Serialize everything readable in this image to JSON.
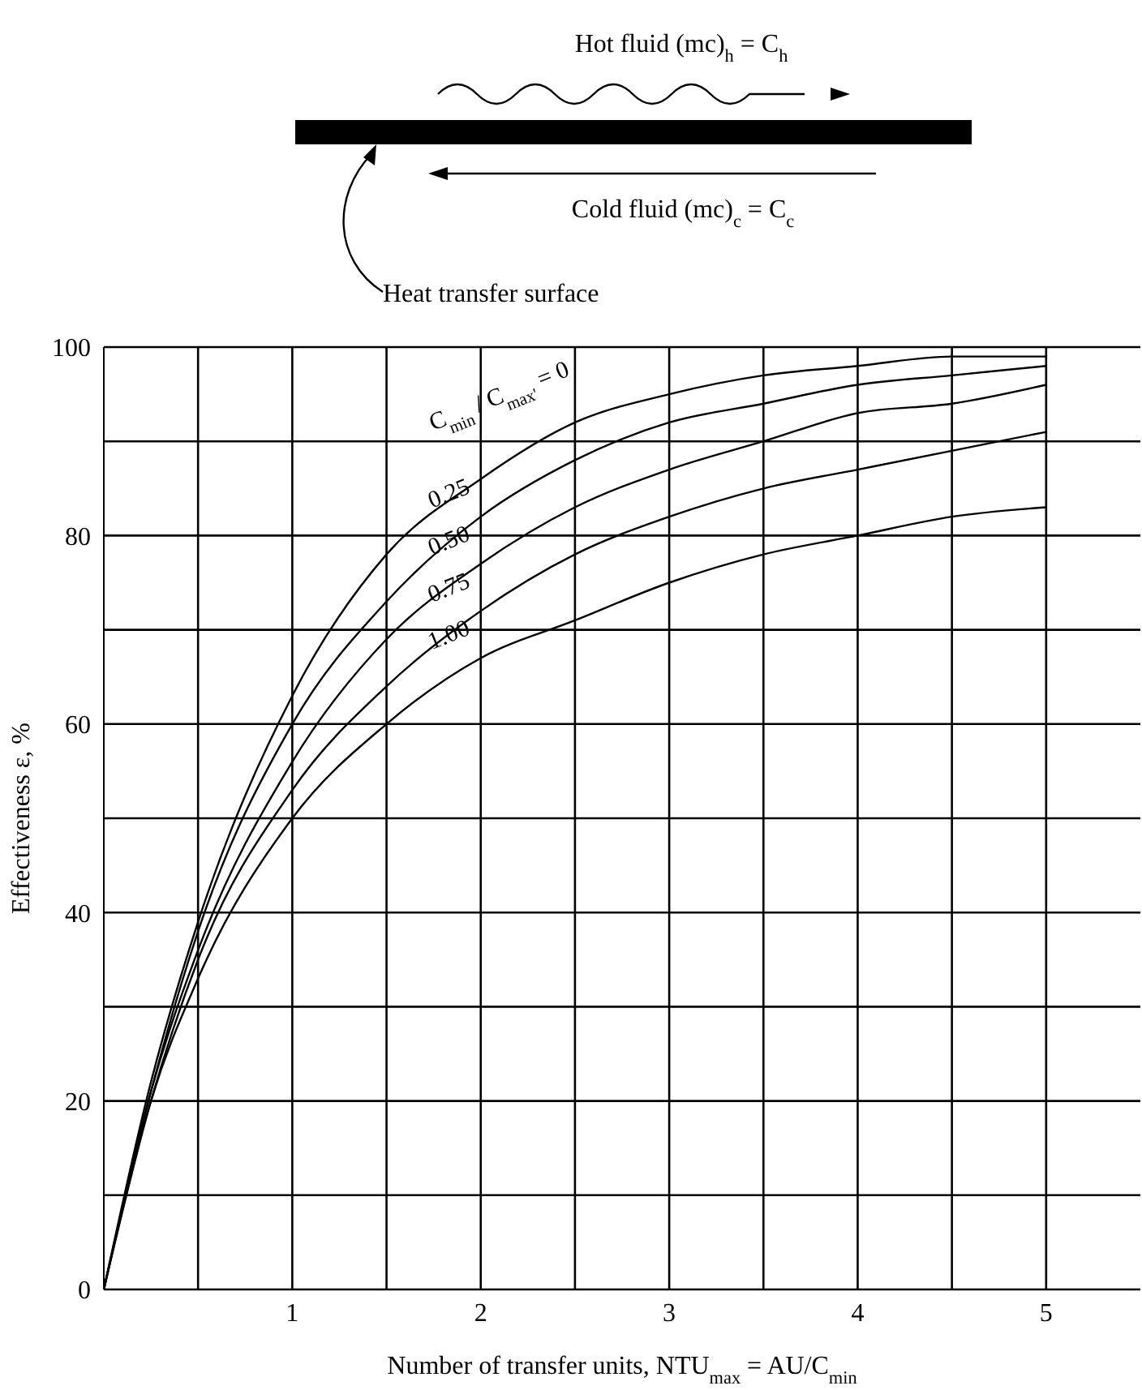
{
  "chart_data": {
    "type": "line",
    "xlabel": "Number of transfer units, NTU$_{max}$ = AU/C$_{min}$",
    "ylabel": "Effectiveness ε, %",
    "annotations": [
      "Hot fluid (mc)$_{h}$ = C$_{h}$",
      "Cold fluid (mc)$_{c}$ = C$_{c}$",
      "Heat transfer surface"
    ],
    "x": [
      0,
      0.25,
      0.5,
      1,
      1.5,
      2,
      2.5,
      3,
      3.5,
      4,
      4.5,
      5
    ],
    "series": [
      {
        "name": "C$_{min}$ / C$_{max'}$ = 0",
        "color": "#000000",
        "values": [
          0,
          22,
          39,
          63,
          78,
          86,
          92,
          95,
          97,
          98,
          99,
          99
        ]
      },
      {
        "name": "0.25",
        "color": "#000000",
        "values": [
          0,
          21,
          38,
          60,
          73,
          82,
          88,
          92,
          94,
          96,
          97,
          98
        ]
      },
      {
        "name": "0.50",
        "color": "#000000",
        "values": [
          0,
          21,
          36,
          56,
          69,
          77,
          83,
          87,
          90,
          93,
          94,
          96
        ]
      },
      {
        "name": "0.75",
        "color": "#000000",
        "values": [
          0,
          20,
          35,
          53,
          64,
          72,
          78,
          82,
          85,
          87,
          89,
          91
        ]
      },
      {
        "name": "1.00",
        "color": "#000000",
        "values": [
          0,
          20,
          33,
          50,
          60,
          67,
          71,
          75,
          78,
          80,
          82,
          83
        ]
      }
    ],
    "xlim": [
      0,
      5.5
    ],
    "xticks": [
      {
        "value": 0.5,
        "label": null
      },
      1,
      {
        "value": 1.5,
        "label": null
      },
      2,
      {
        "value": 2.5,
        "label": null
      },
      3,
      {
        "value": 3.5,
        "label": null
      },
      4,
      {
        "value": 4.5,
        "label": null
      },
      5
    ],
    "ylim": [
      0,
      100
    ],
    "yticks": [
      0,
      {
        "value": 10,
        "label": null
      },
      20,
      {
        "value": 30,
        "label": null
      },
      40,
      {
        "value": 50,
        "label": null
      },
      60,
      {
        "value": 70,
        "label": null
      },
      80,
      {
        "value": 90,
        "label": null
      },
      100
    ],
    "grid": true,
    "marker": "none",
    "line_style": "solid"
  }
}
